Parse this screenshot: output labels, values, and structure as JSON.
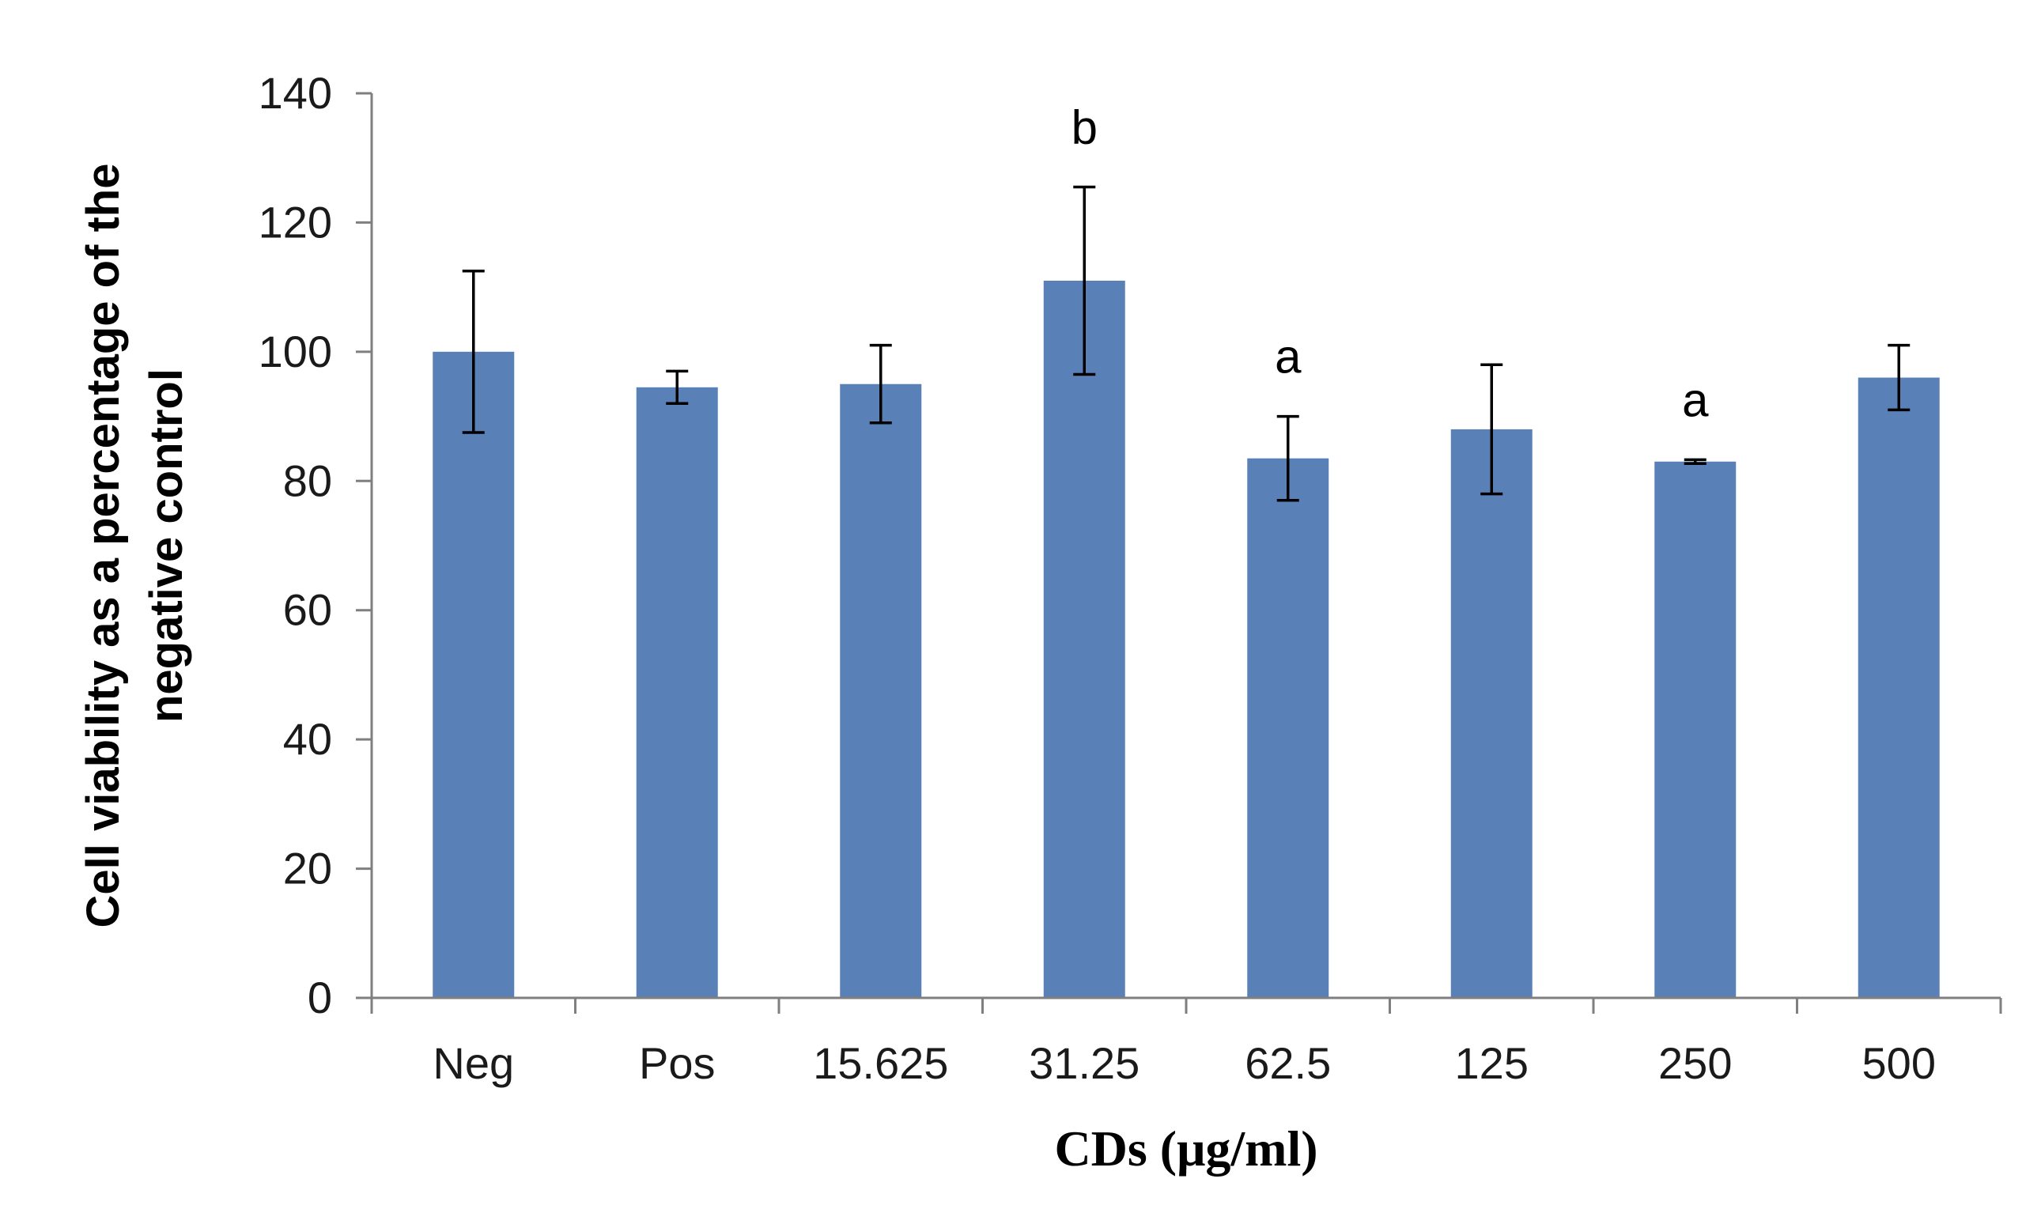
{
  "chart_data": {
    "type": "bar",
    "categories": [
      "Neg",
      "Pos",
      "15.625",
      "31.25",
      "62.5",
      "125",
      "250",
      "500"
    ],
    "values": [
      100,
      94.5,
      95,
      111,
      83.5,
      88,
      83,
      96
    ],
    "errors": [
      12.5,
      2.5,
      6,
      14.5,
      6.5,
      10,
      0.3,
      5
    ],
    "annotations": [
      "",
      "",
      "",
      "b",
      "a",
      "",
      "a",
      ""
    ],
    "xlabel": "CDs (μg/ml)",
    "ylabel_lines": [
      "Cell viability as a percentage of the",
      "negative control"
    ],
    "ylim": [
      0,
      140
    ],
    "yticks": [
      0,
      20,
      40,
      60,
      80,
      100,
      120,
      140
    ],
    "grid": false,
    "bar_color": "#5a80b8",
    "axis_color": "#7f7f7f",
    "error_bar_color": "#000000"
  }
}
